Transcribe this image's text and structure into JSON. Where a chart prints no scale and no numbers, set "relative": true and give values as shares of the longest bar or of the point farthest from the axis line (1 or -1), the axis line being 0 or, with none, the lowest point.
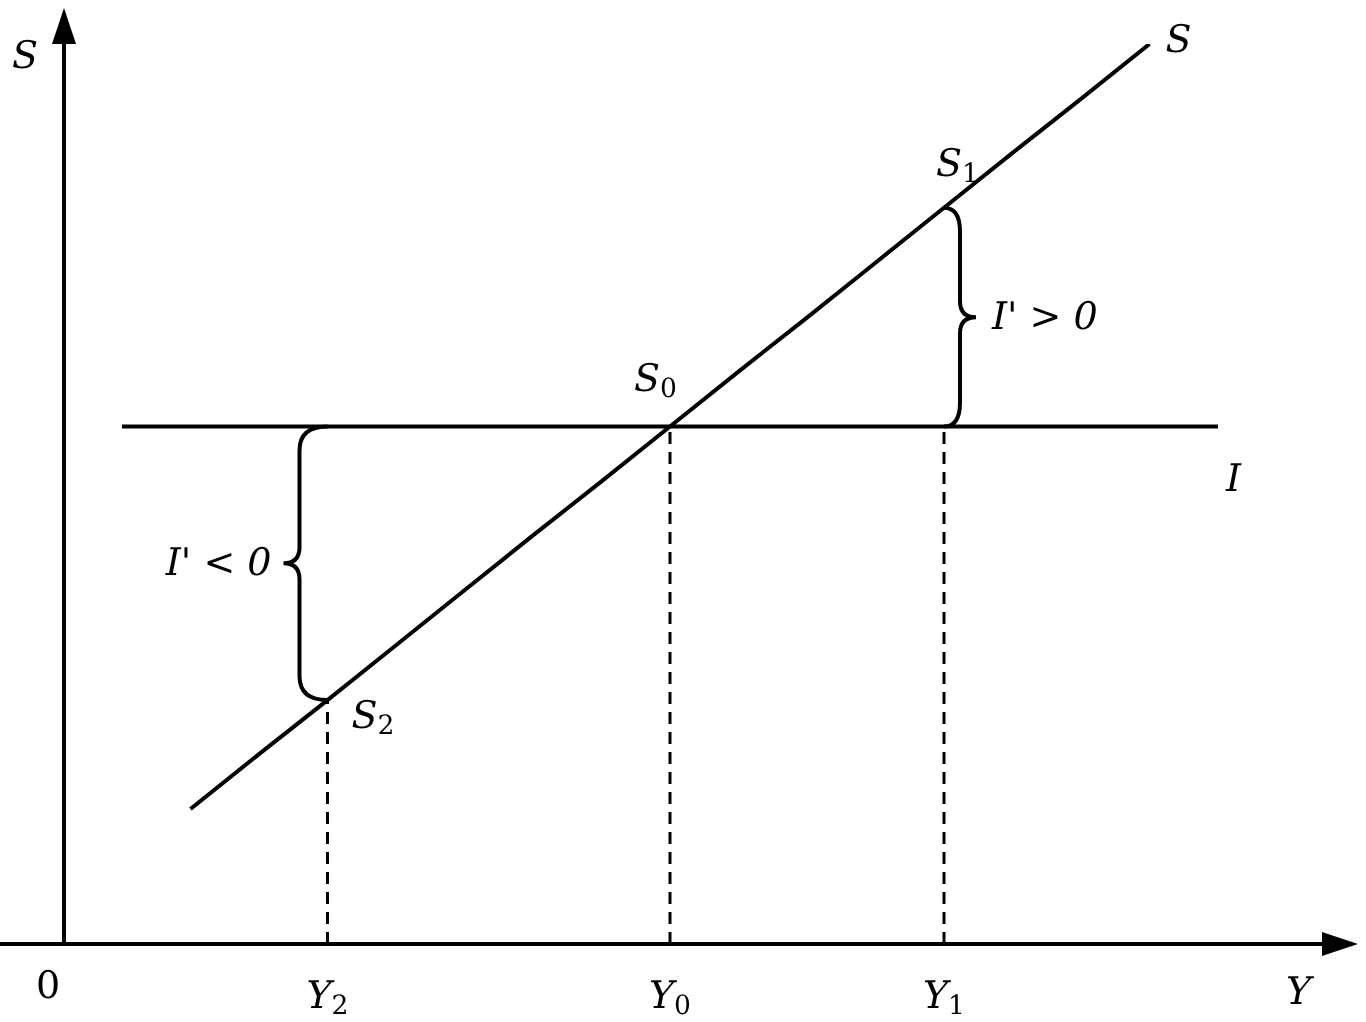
{
  "chart_data": {
    "type": "line",
    "relative": true,
    "xlabel": "Y",
    "ylabel": "S",
    "categories": [
      null,
      null,
      null,
      "Y$_{2}$",
      null,
      null,
      null,
      null,
      "Y$_{0}$",
      null,
      null,
      null,
      "Y$_{1}$",
      null,
      null,
      null,
      null
    ],
    "series": [
      {
        "name": "S",
        "color": "#000000",
        "values": [
          null,
          0.15,
          0.211,
          0.271,
          0.332,
          0.393,
          0.454,
          0.514,
          0.575,
          0.636,
          0.696,
          0.757,
          0.818,
          0.879,
          0.939,
          1,
          null
        ]
      },
      {
        "name": "I",
        "color": "#000000",
        "values": [
          0.575,
          0.575,
          0.575,
          0.575,
          0.575,
          0.575,
          0.575,
          0.575,
          0.575,
          0.575,
          0.575,
          0.575,
          0.575,
          0.575,
          0.575,
          0.575,
          0.575
        ]
      }
    ],
    "ref_lines": [
      {
        "axis": "x",
        "value": "Y$_{2}$",
        "color": "#000000",
        "line_style": "dashed"
      },
      {
        "axis": "x",
        "value": "Y$_{0}$",
        "color": "#000000",
        "line_style": "dashed"
      },
      {
        "axis": "x",
        "value": "Y$_{1}$",
        "color": "#000000",
        "line_style": "dashed"
      }
    ],
    "annotations": [
      {
        "text": "S$_{0}$",
        "x": "Y$_{0}$",
        "y": 0.575
      },
      {
        "text": "S$_{1}$",
        "x": "Y$_{1}$",
        "y": 0.818
      },
      {
        "text": "S$_{2}$",
        "x": "Y$_{2}$",
        "y": 0.271
      },
      "0",
      "I' < 0",
      "I' > 0"
    ]
  }
}
